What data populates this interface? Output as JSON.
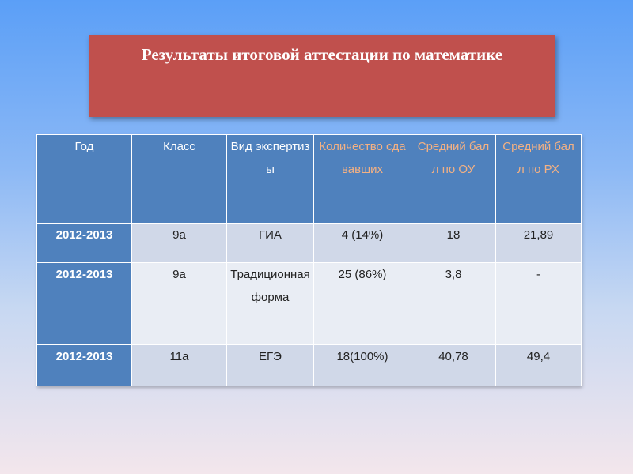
{
  "title": "Результаты итоговой аттестации по математике",
  "table": {
    "headers": [
      {
        "label": "Год",
        "accent": false
      },
      {
        "label": "Класс",
        "accent": false
      },
      {
        "label": "Вид экспертизы",
        "accent": false
      },
      {
        "label": "Количество сдававших",
        "accent": true
      },
      {
        "label": "Средний балл по ОУ",
        "accent": true
      },
      {
        "label": "Средний балл по РХ",
        "accent": true
      }
    ],
    "rows": [
      {
        "year": "2012-2013",
        "class": "9а",
        "type": "ГИА",
        "count": "4 (14%)",
        "avg_ou": "18",
        "avg_rh": "21,89"
      },
      {
        "year": "2012-2013",
        "class": "9а",
        "type": "Традиционная форма",
        "count": "25 (86%)",
        "avg_ou": "3,8",
        "avg_rh": "-"
      },
      {
        "year": "2012-2013",
        "class": "11а",
        "type": "ЕГЭ",
        "count": "18(100%)",
        "avg_ou": "40,78",
        "avg_rh": "49,4"
      }
    ]
  },
  "colors": {
    "title_bg": "#c0504d",
    "header_bg": "#4f81bd",
    "header_accent_text": "#f4b183",
    "row_light": "#d0d8e8",
    "row_pale": "#e9edf4"
  }
}
